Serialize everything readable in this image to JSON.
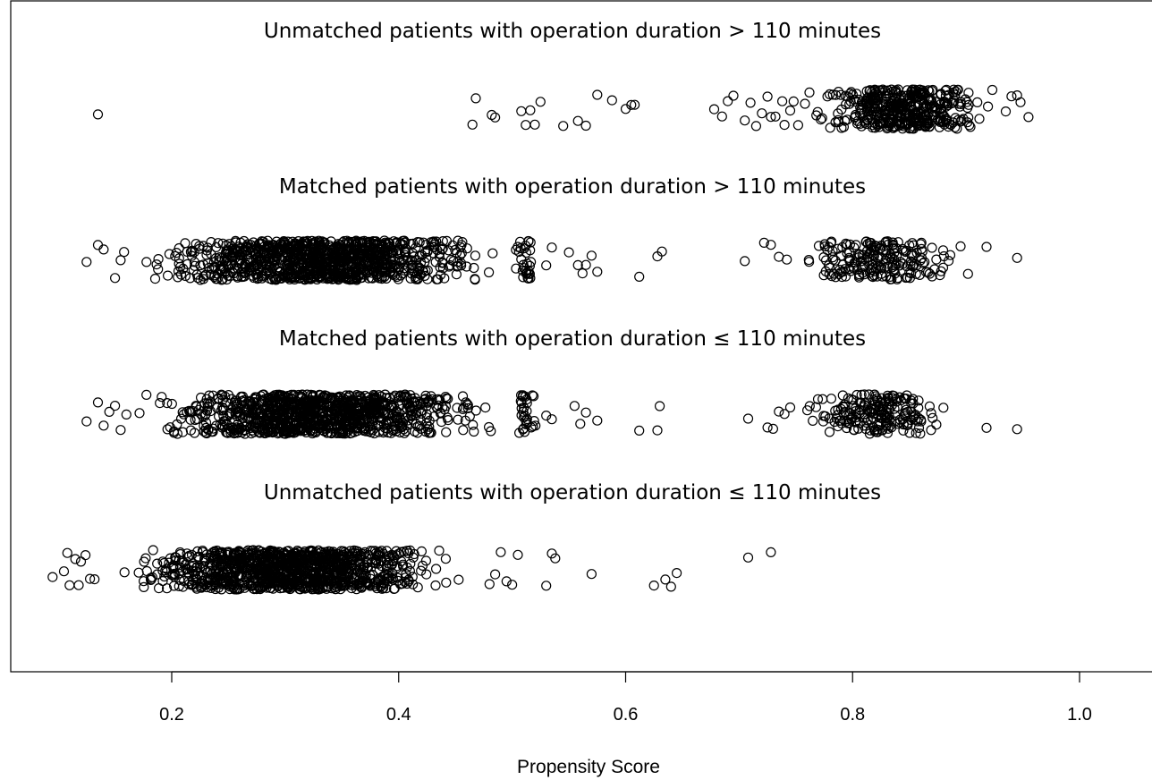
{
  "chart_data": {
    "type": "scatter",
    "title": "",
    "xlabel": "Propensity Score",
    "ylabel": "",
    "xlim": [
      0.05,
      1.05
    ],
    "x_ticks": [
      0.2,
      0.4,
      0.6,
      0.8,
      1.0
    ],
    "x_tick_labels": [
      "0.2",
      "0.4",
      "0.6",
      "0.8",
      "1.0"
    ],
    "grid": false,
    "marker": "open-circle",
    "groups": [
      {
        "label": "Unmatched patients with operation duration > 110 minutes",
        "outliers": [
          0.135,
          0.465,
          0.468,
          0.482,
          0.485,
          0.508,
          0.512,
          0.516,
          0.52,
          0.525,
          0.545,
          0.558,
          0.565,
          0.575,
          0.588,
          0.6,
          0.605,
          0.608,
          0.678,
          0.685,
          0.69,
          0.695,
          0.705,
          0.71,
          0.715,
          0.72,
          0.725,
          0.728,
          0.732,
          0.738,
          0.74,
          0.745,
          0.748,
          0.752,
          0.758,
          0.762,
          0.768,
          0.772,
          0.935,
          0.94,
          0.945,
          0.948,
          0.955
        ],
        "dense_clusters": [
          [
            0.76,
            0.93,
            420
          ]
        ]
      },
      {
        "label": "Matched patients with operation duration > 110 minutes",
        "outliers": [
          0.125,
          0.135,
          0.14,
          0.15,
          0.155,
          0.158,
          0.53,
          0.535,
          0.55,
          0.558,
          0.562,
          0.565,
          0.57,
          0.575,
          0.612,
          0.628,
          0.632,
          0.705,
          0.722,
          0.728,
          0.735,
          0.742,
          0.918,
          0.945
        ],
        "dense_clusters": [
          [
            0.16,
            0.5,
            1050
          ],
          [
            0.5,
            0.525,
            30
          ],
          [
            0.745,
            0.91,
            200
          ]
        ]
      },
      {
        "label": "Matched patients with operation duration ≤ 110 minutes",
        "outliers": [
          0.125,
          0.135,
          0.14,
          0.145,
          0.15,
          0.155,
          0.16,
          0.53,
          0.535,
          0.555,
          0.56,
          0.565,
          0.575,
          0.612,
          0.628,
          0.63,
          0.708,
          0.725,
          0.73,
          0.735,
          0.74,
          0.745,
          0.918,
          0.945
        ],
        "dense_clusters": [
          [
            0.16,
            0.5,
            1050
          ],
          [
            0.5,
            0.525,
            30
          ],
          [
            0.745,
            0.9,
            200
          ]
        ]
      },
      {
        "label": "Unmatched patients with operation duration ≤ 110 minutes",
        "outliers": [
          0.095,
          0.105,
          0.108,
          0.11,
          0.115,
          0.118,
          0.12,
          0.124,
          0.128,
          0.132,
          0.48,
          0.485,
          0.49,
          0.495,
          0.5,
          0.505,
          0.53,
          0.535,
          0.538,
          0.57,
          0.625,
          0.635,
          0.64,
          0.645,
          0.708,
          0.728
        ],
        "dense_clusters": [
          [
            0.14,
            0.47,
            1100
          ]
        ]
      }
    ]
  }
}
